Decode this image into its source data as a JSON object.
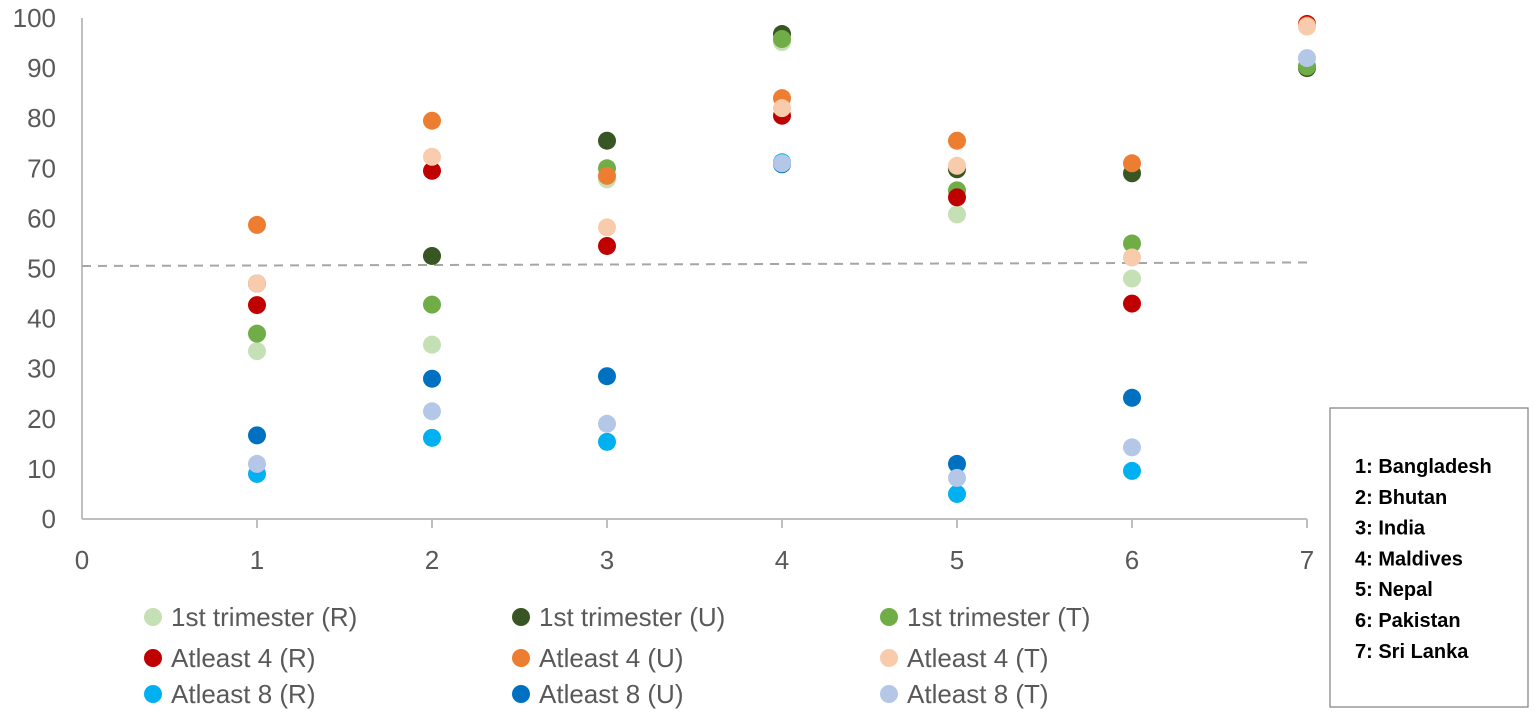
{
  "chart_data": {
    "type": "scatter",
    "title": "",
    "xlabel": "",
    "ylabel": "",
    "xlim": [
      0,
      7
    ],
    "ylim": [
      0,
      100
    ],
    "xticks": [
      "0",
      "1",
      "2",
      "3",
      "4",
      "5",
      "6",
      "7"
    ],
    "yticks": [
      "0",
      "10",
      "20",
      "30",
      "40",
      "50",
      "60",
      "70",
      "80",
      "90",
      "100"
    ],
    "grid": false,
    "reference_line": {
      "style": "dashed",
      "color": "#A6A6A6",
      "from": [
        0,
        50.5
      ],
      "to": [
        7,
        51.2
      ]
    },
    "series": [
      {
        "name": "1st trimester (R)",
        "color": "#C5E0B4",
        "x": [
          1,
          2,
          3,
          4,
          5,
          6,
          7
        ],
        "y": [
          33.5,
          34.8,
          67.8,
          95.2,
          60.8,
          48.0,
          90.5
        ]
      },
      {
        "name": "1st trimester (U)",
        "color": "#375623",
        "x": [
          1,
          2,
          3,
          4,
          5,
          6,
          7
        ],
        "y": [
          47.0,
          52.5,
          75.5,
          96.8,
          69.8,
          69.0,
          90.0
        ]
      },
      {
        "name": "1st trimester (T)",
        "color": "#70AD47",
        "x": [
          1,
          2,
          3,
          4,
          5,
          6,
          7
        ],
        "y": [
          37.0,
          42.8,
          70.0,
          95.8,
          65.6,
          55.0,
          90.3
        ]
      },
      {
        "name": "Atleast 4 (R)",
        "color": "#C00000",
        "x": [
          1,
          2,
          3,
          4,
          5,
          6,
          7
        ],
        "y": [
          42.7,
          69.5,
          54.5,
          80.5,
          64.2,
          43.0,
          98.8
        ]
      },
      {
        "name": "Atleast 4 (U)",
        "color": "#ED7D31",
        "x": [
          1,
          2,
          3,
          4,
          5,
          6,
          7
        ],
        "y": [
          58.7,
          79.5,
          68.5,
          84.0,
          75.5,
          71.0,
          98.5
        ]
      },
      {
        "name": "Atleast 4 (T)",
        "color": "#F8CBAD",
        "x": [
          1,
          2,
          3,
          4,
          5,
          6,
          7
        ],
        "y": [
          47.0,
          72.3,
          58.2,
          82.0,
          70.5,
          52.2,
          98.3
        ]
      },
      {
        "name": "Atleast 8 (R)",
        "color": "#00B0F0",
        "x": [
          1,
          2,
          3,
          4,
          5,
          6
        ],
        "y": [
          9.0,
          16.2,
          15.4,
          71.2,
          5.0,
          9.6
        ]
      },
      {
        "name": "Atleast 8 (U)",
        "color": "#0070C0",
        "x": [
          1,
          2,
          3,
          4,
          5,
          6
        ],
        "y": [
          16.7,
          28.0,
          28.5,
          70.8,
          11.0,
          24.2
        ]
      },
      {
        "name": "Atleast 8 (T)",
        "color": "#B4C7E7",
        "x": [
          1,
          2,
          3,
          4,
          5,
          6,
          7
        ],
        "y": [
          11.0,
          21.5,
          19.0,
          71.0,
          8.2,
          14.3,
          92.0
        ]
      }
    ],
    "legend": {
      "position": "bottom",
      "items": [
        "1st trimester (R)",
        "1st trimester (U)",
        "1st trimester (T)",
        "Atleast 4 (R)",
        "Atleast 4 (U)",
        "Atleast 4 (T)",
        "Atleast 8 (R)",
        "Atleast 8 (U)",
        "Atleast 8 (T)"
      ]
    },
    "annotation_box": {
      "position": "right",
      "lines": [
        "1: Bangladesh",
        "2: Bhutan",
        "3: India",
        "4: Maldives",
        "5: Nepal",
        "6: Pakistan",
        "7: Sri Lanka"
      ]
    }
  }
}
